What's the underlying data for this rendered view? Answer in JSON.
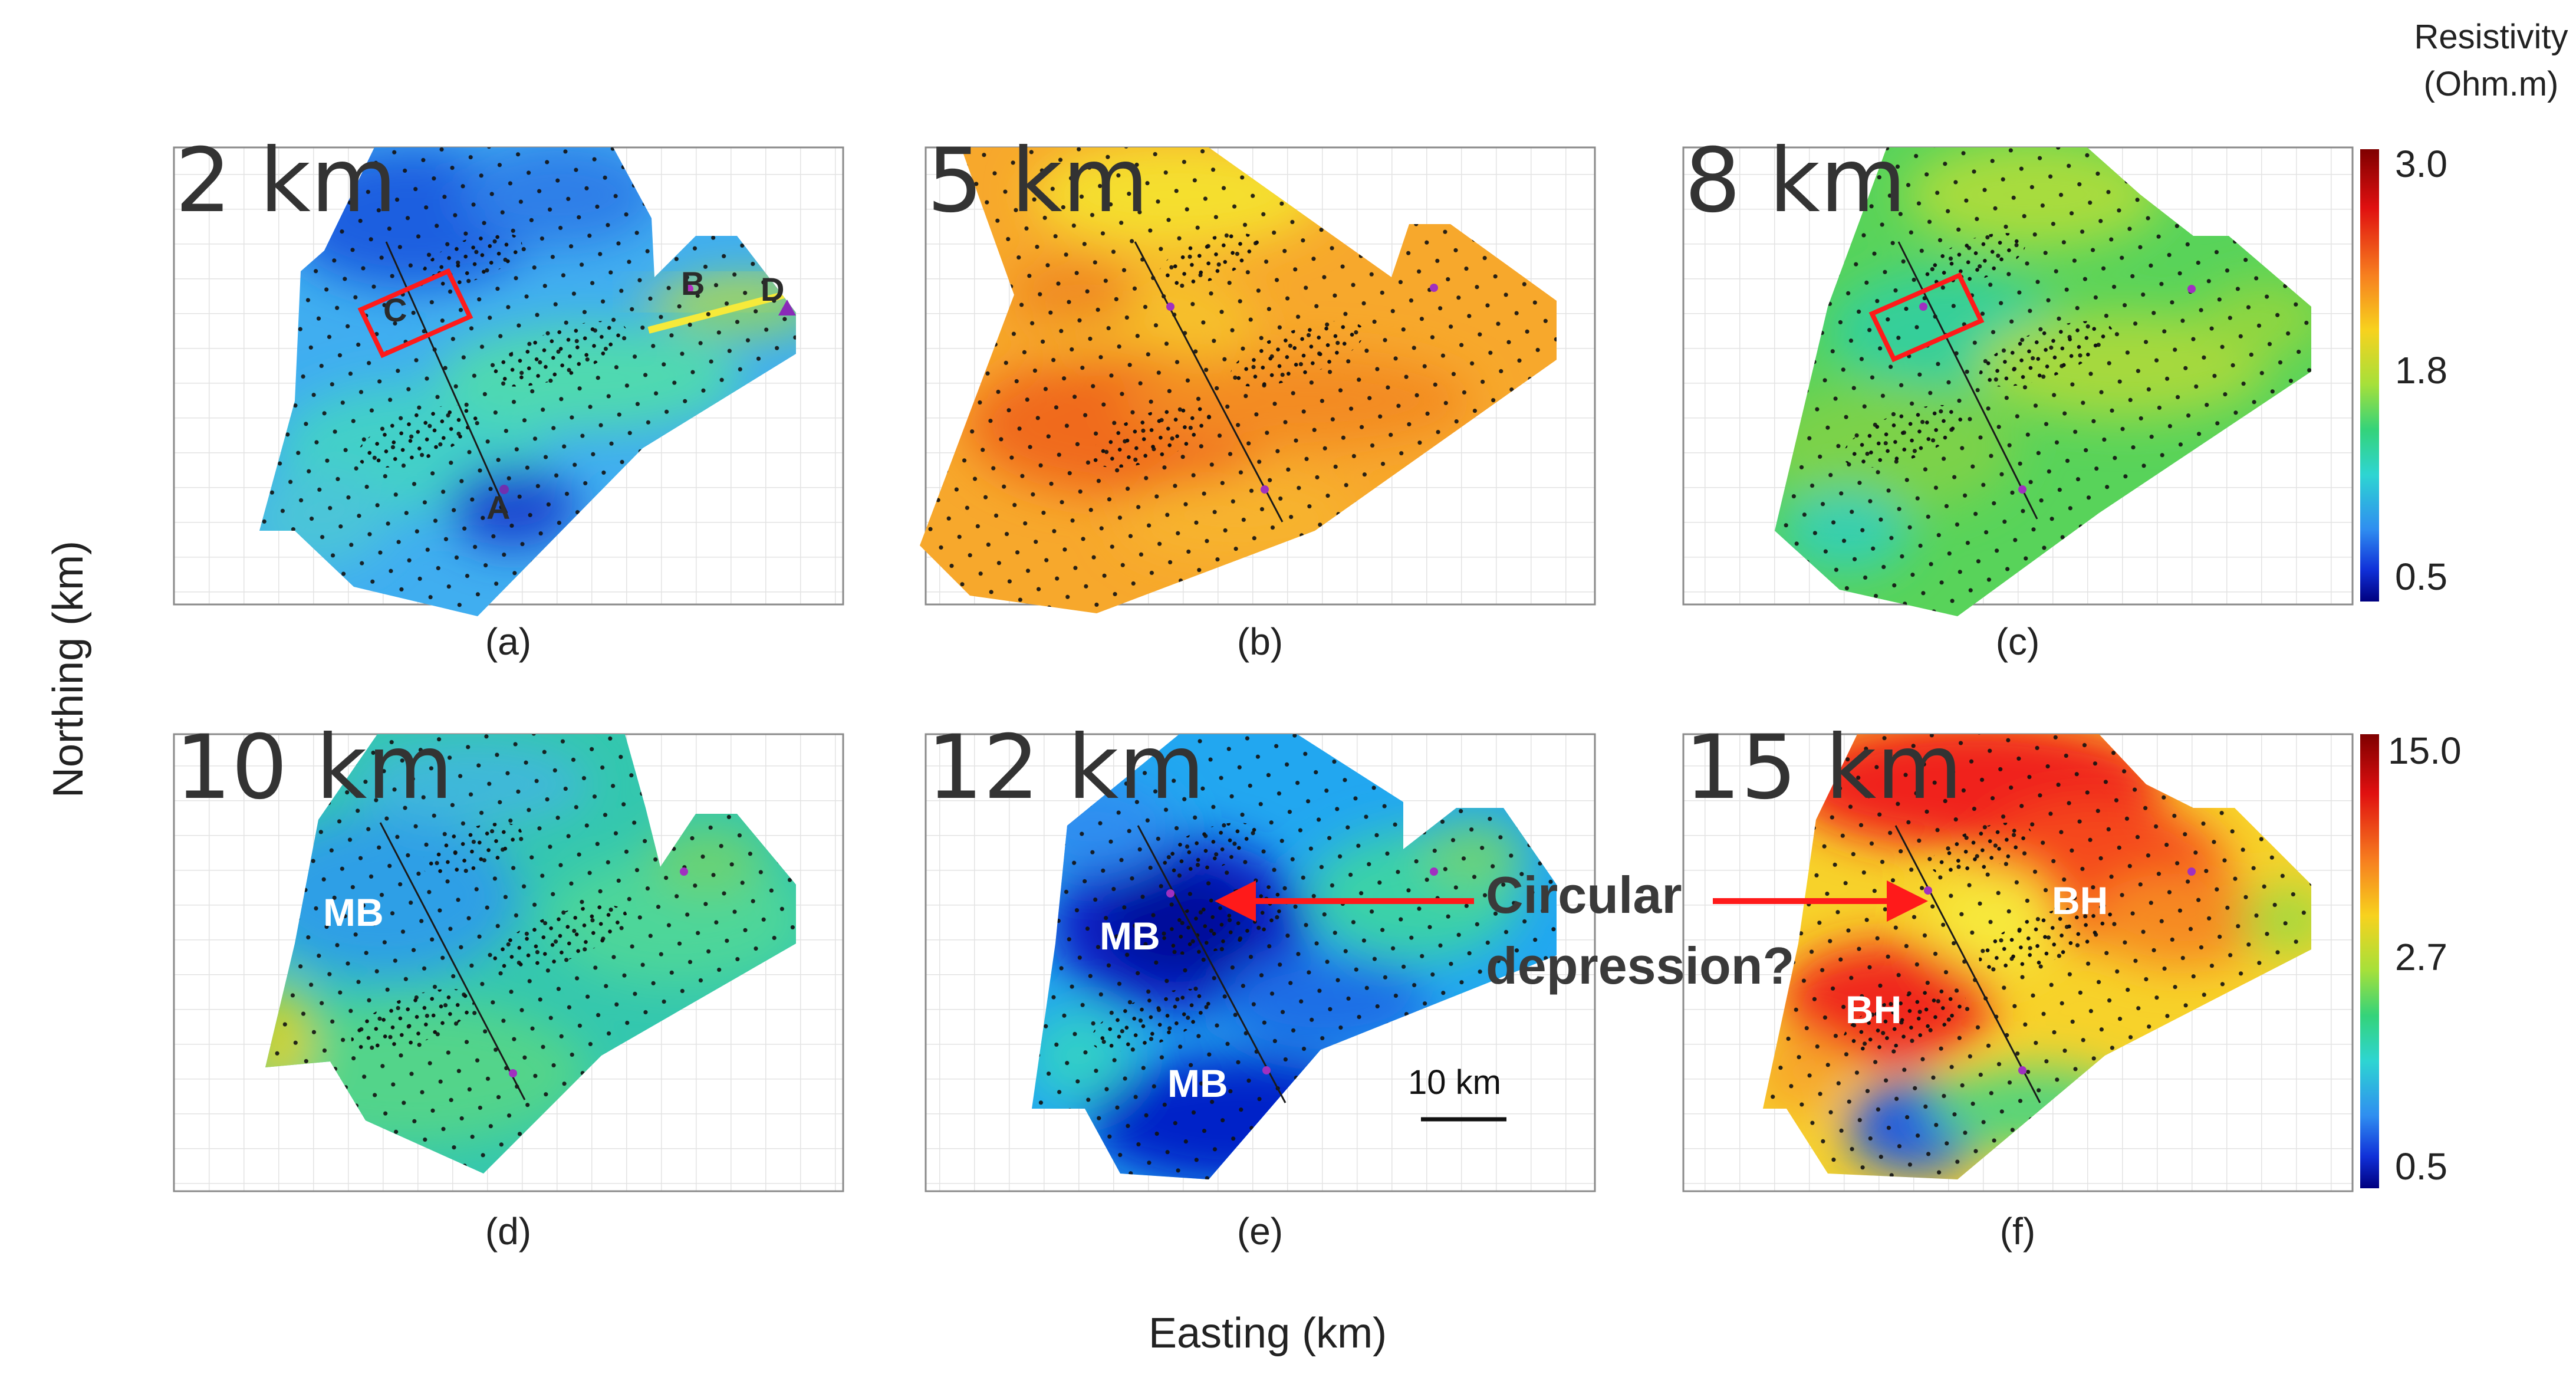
{
  "figure": {
    "xlabel": "Easting (km)",
    "ylabel": "Northing (km)",
    "colors": {
      "frame": "#8a8a8a",
      "grid": "#e3e3e3",
      "annotation": "#ff1a1a",
      "station": "#111111",
      "text": "#333333"
    }
  },
  "colorbars": [
    {
      "title_line1": "Resistivity",
      "title_line2": "(Ohm.m)",
      "ticks": [
        "3.0",
        "1.8",
        "0.5"
      ],
      "tick_values": [
        3.0,
        1.8,
        0.5
      ],
      "applies_to": [
        "a",
        "b",
        "c"
      ]
    },
    {
      "title_line1": "",
      "title_line2": "",
      "ticks": [
        "15.0",
        "2.7",
        "0.5"
      ],
      "tick_values": [
        15.0,
        2.7,
        0.5
      ],
      "applies_to": [
        "d",
        "e",
        "f"
      ]
    }
  ],
  "chart_data": [
    {
      "type": "heatmap",
      "panel": "a",
      "caption": "(a)",
      "depth_label": "2 km",
      "dominant_color": "#3ea5ee",
      "point_labels": [
        "C",
        "B",
        "D",
        "A"
      ],
      "annotations": {
        "red_box": true
      }
    },
    {
      "type": "heatmap",
      "panel": "b",
      "caption": "(b)",
      "depth_label": "5 km",
      "dominant_color": "#f6a82c",
      "point_labels": [],
      "annotations": {
        "red_box": false
      }
    },
    {
      "type": "heatmap",
      "panel": "c",
      "caption": "(c)",
      "depth_label": "8 km",
      "dominant_color": "#57d35a",
      "point_labels": [],
      "annotations": {
        "red_box": true
      }
    },
    {
      "type": "heatmap",
      "panel": "d",
      "caption": "(d)",
      "depth_label": "10 km",
      "dominant_color": "#33c7a8",
      "feature_labels": [
        "MB"
      ],
      "annotations": {}
    },
    {
      "type": "heatmap",
      "panel": "e",
      "caption": "(e)",
      "depth_label": "12 km",
      "dominant_color": "#1d78e6",
      "feature_labels": [
        "MB",
        "MB"
      ],
      "scale_bar": "10 km",
      "annotations": {
        "arrow_text_line1": "Circular",
        "arrow_text_line2": "depression?"
      }
    },
    {
      "type": "heatmap",
      "panel": "f",
      "caption": "(f)",
      "depth_label": "15 km",
      "dominant_color": "#f7741e",
      "feature_labels": [
        "BH",
        "BH"
      ],
      "annotations": {}
    }
  ]
}
